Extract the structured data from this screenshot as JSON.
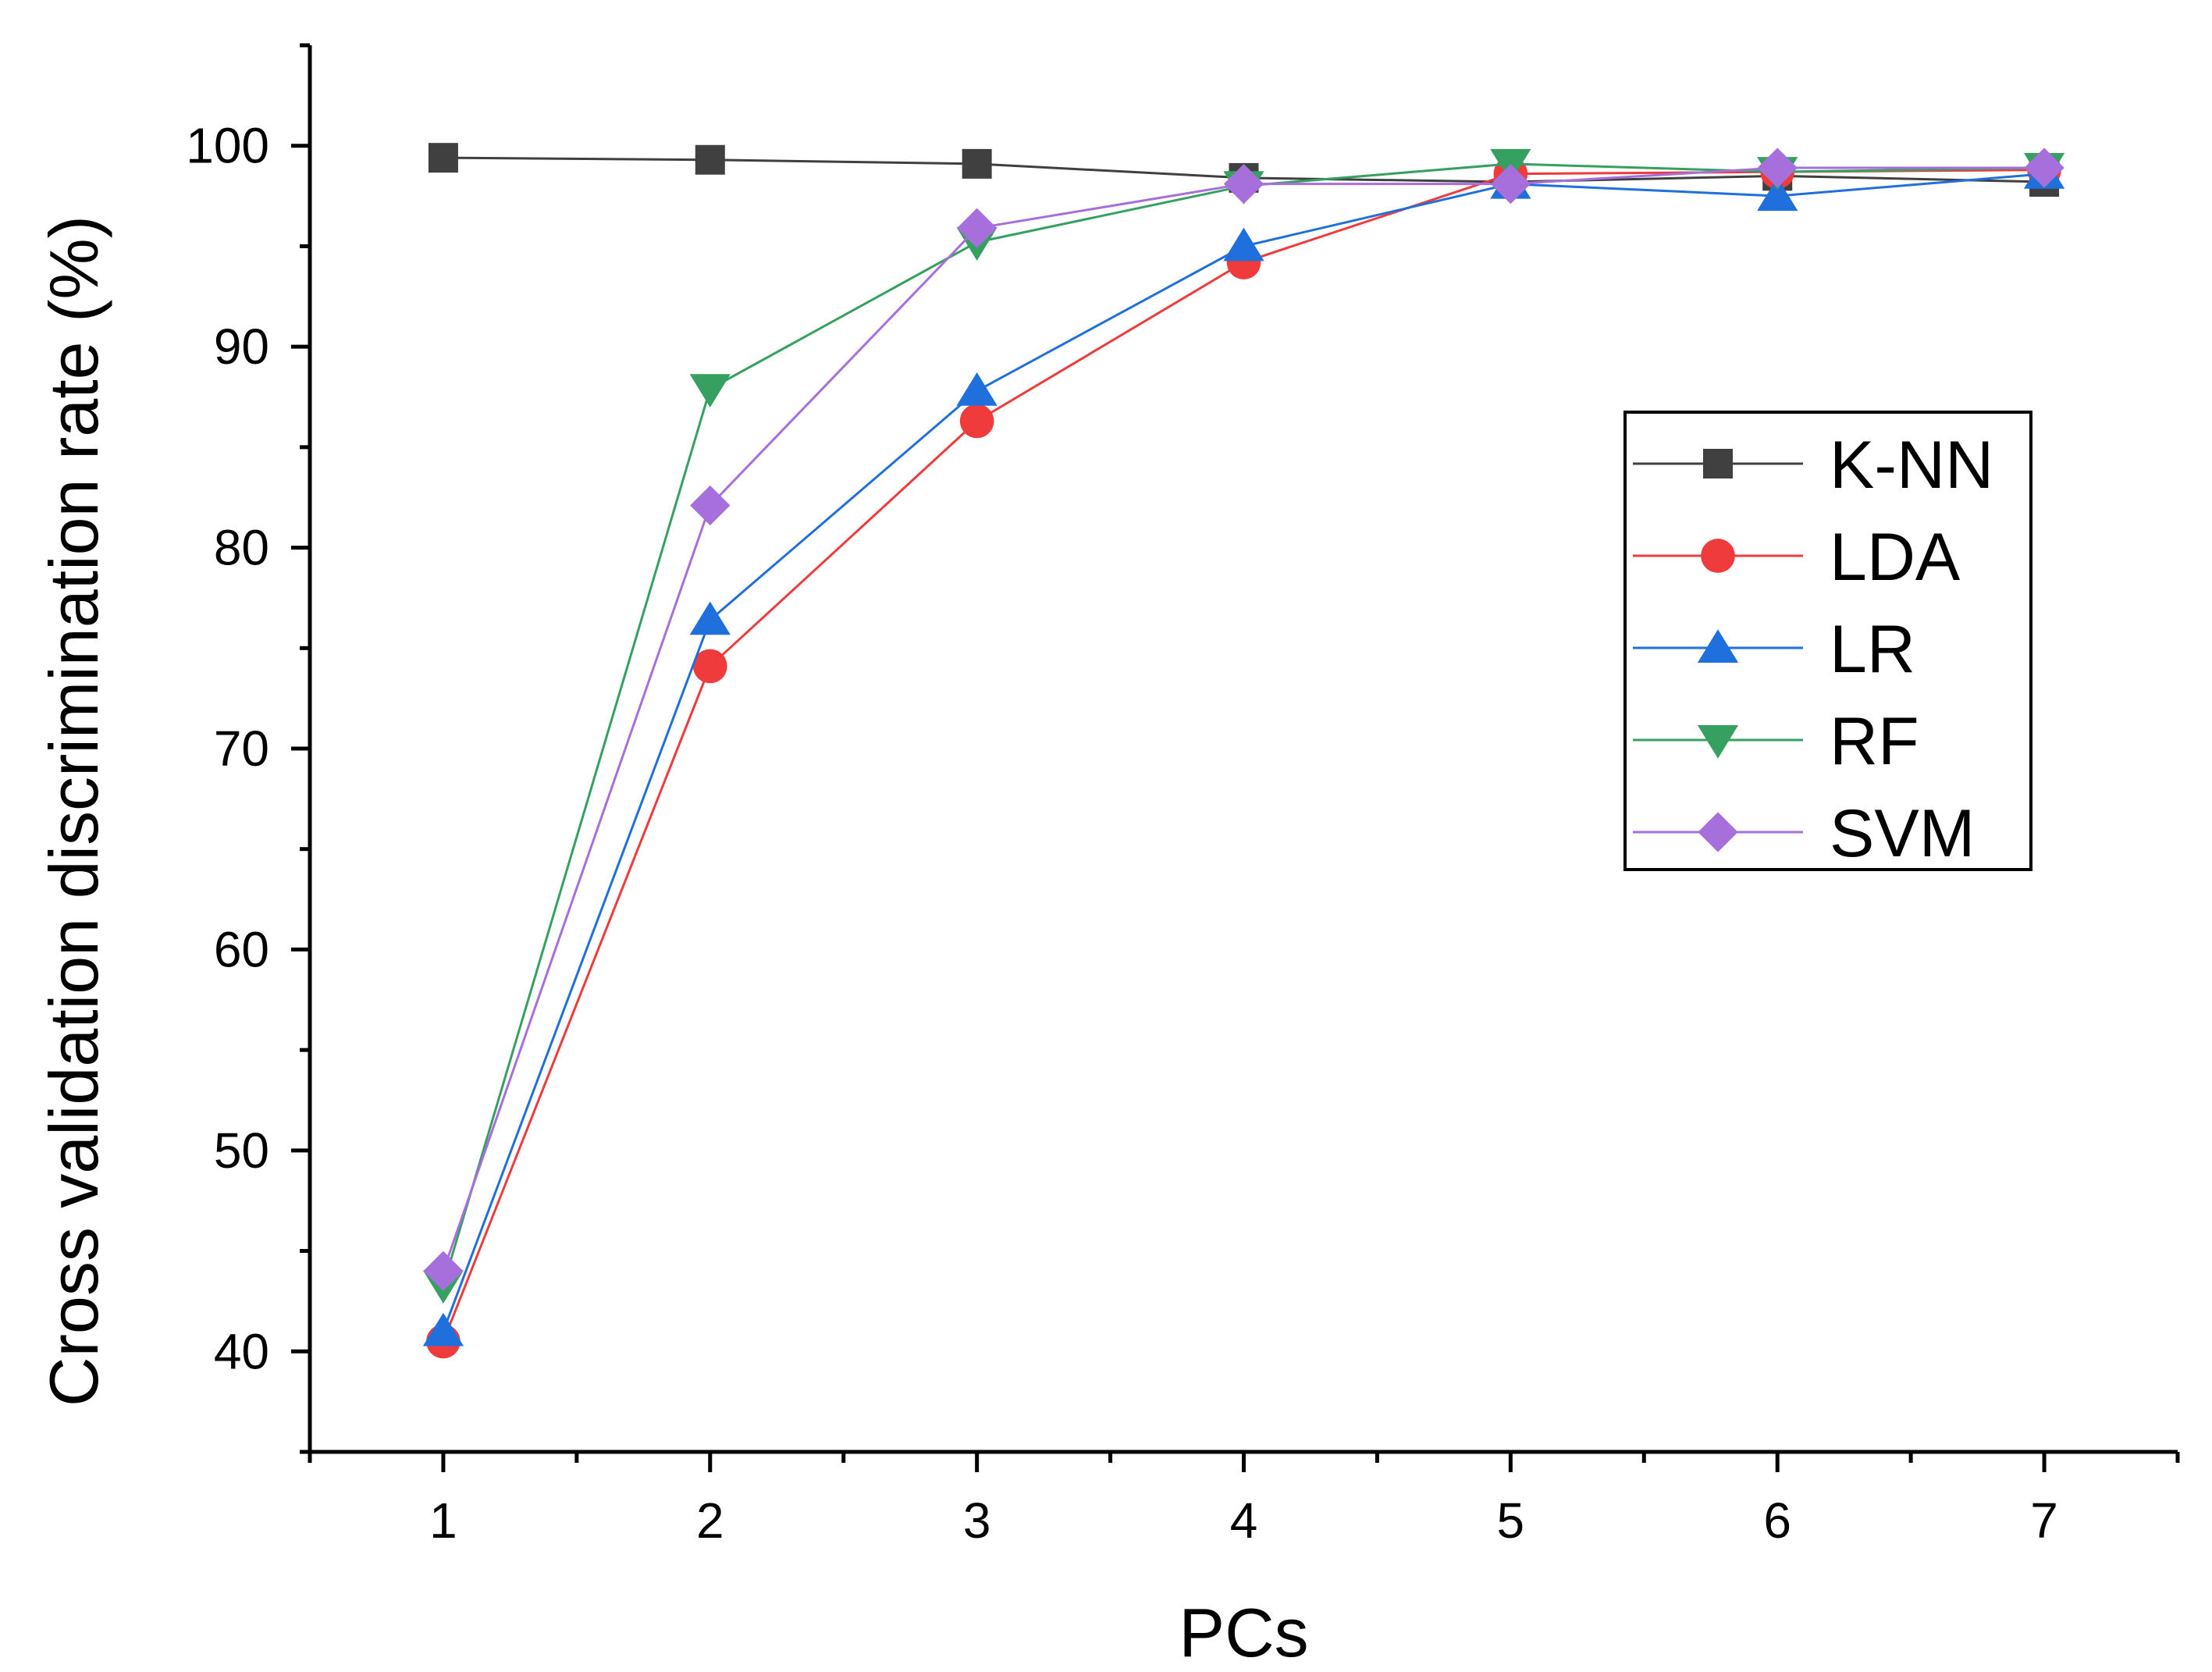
{
  "chart_data": {
    "type": "line",
    "title": "",
    "xlabel": "PCs",
    "ylabel": "Cross validation discrimination rate (%)",
    "x": [
      1,
      2,
      3,
      4,
      5,
      6,
      7
    ],
    "xlim": [
      0.5,
      7.5
    ],
    "ylim": [
      35,
      105
    ],
    "yticks": [
      40,
      50,
      60,
      70,
      80,
      90,
      100
    ],
    "xticks": [
      1,
      2,
      3,
      4,
      5,
      6,
      7
    ],
    "grid": false,
    "legend_position": "right-middle",
    "series": [
      {
        "name": "K-NN",
        "color": "#404040",
        "marker": "square",
        "values": [
          99.4,
          99.3,
          99.1,
          98.4,
          98.2,
          98.5,
          98.2
        ]
      },
      {
        "name": "LDA",
        "color": "#ef3b3b",
        "marker": "circle",
        "values": [
          40.5,
          74.1,
          86.3,
          94.2,
          98.6,
          98.7,
          98.8
        ]
      },
      {
        "name": "LR",
        "color": "#1f6fdc",
        "marker": "triangle-up",
        "values": [
          41.0,
          76.4,
          87.8,
          95.0,
          98.1,
          97.5,
          98.6
        ]
      },
      {
        "name": "RF",
        "color": "#35a060",
        "marker": "triangle-down",
        "values": [
          43.3,
          87.9,
          95.2,
          98.0,
          99.1,
          98.7,
          98.9
        ]
      },
      {
        "name": "SVM",
        "color": "#a66fdc",
        "marker": "diamond",
        "values": [
          44.0,
          82.1,
          95.9,
          98.1,
          98.1,
          98.9,
          98.9
        ]
      }
    ]
  }
}
